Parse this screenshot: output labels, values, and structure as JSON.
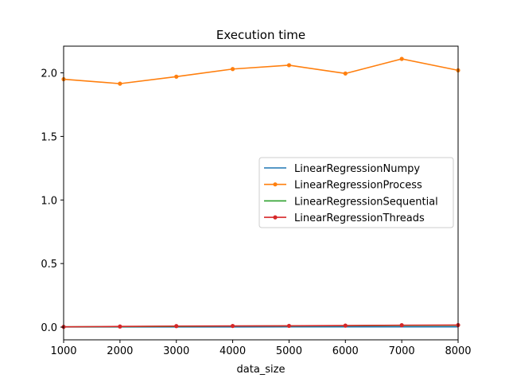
{
  "chart_data": {
    "type": "line",
    "title": "Execution time",
    "xlabel": "data_size",
    "ylabel": "",
    "xlim": [
      1000,
      8000
    ],
    "ylim": [
      -0.1,
      2.21
    ],
    "xticks": [
      1000,
      2000,
      3000,
      4000,
      5000,
      6000,
      7000,
      8000
    ],
    "yticks": [
      0.0,
      0.5,
      1.0,
      1.5,
      2.0
    ],
    "ytick_labels": [
      "0.0",
      "0.5",
      "1.0",
      "1.5",
      "2.0"
    ],
    "grid": false,
    "legend_position": "center-right",
    "x": [
      1000,
      2000,
      3000,
      4000,
      5000,
      6000,
      7000,
      8000
    ],
    "series": [
      {
        "name": "LinearRegressionNumpy",
        "color": "#1f77b4",
        "marker": "none",
        "values": [
          0.001,
          0.001,
          0.001,
          0.001,
          0.002,
          0.002,
          0.002,
          0.002
        ]
      },
      {
        "name": "LinearRegressionProcess",
        "color": "#ff7f0e",
        "marker": "dot",
        "values": [
          1.95,
          1.915,
          1.97,
          2.03,
          2.06,
          1.995,
          2.11,
          2.02
        ]
      },
      {
        "name": "LinearRegressionSequential",
        "color": "#2ca02c",
        "marker": "none",
        "values": [
          0.002,
          0.004,
          0.006,
          0.008,
          0.009,
          0.011,
          0.013,
          0.014
        ]
      },
      {
        "name": "LinearRegressionThreads",
        "color": "#d62728",
        "marker": "dot",
        "values": [
          0.002,
          0.005,
          0.008,
          0.009,
          0.01,
          0.012,
          0.015,
          0.016
        ]
      }
    ]
  }
}
